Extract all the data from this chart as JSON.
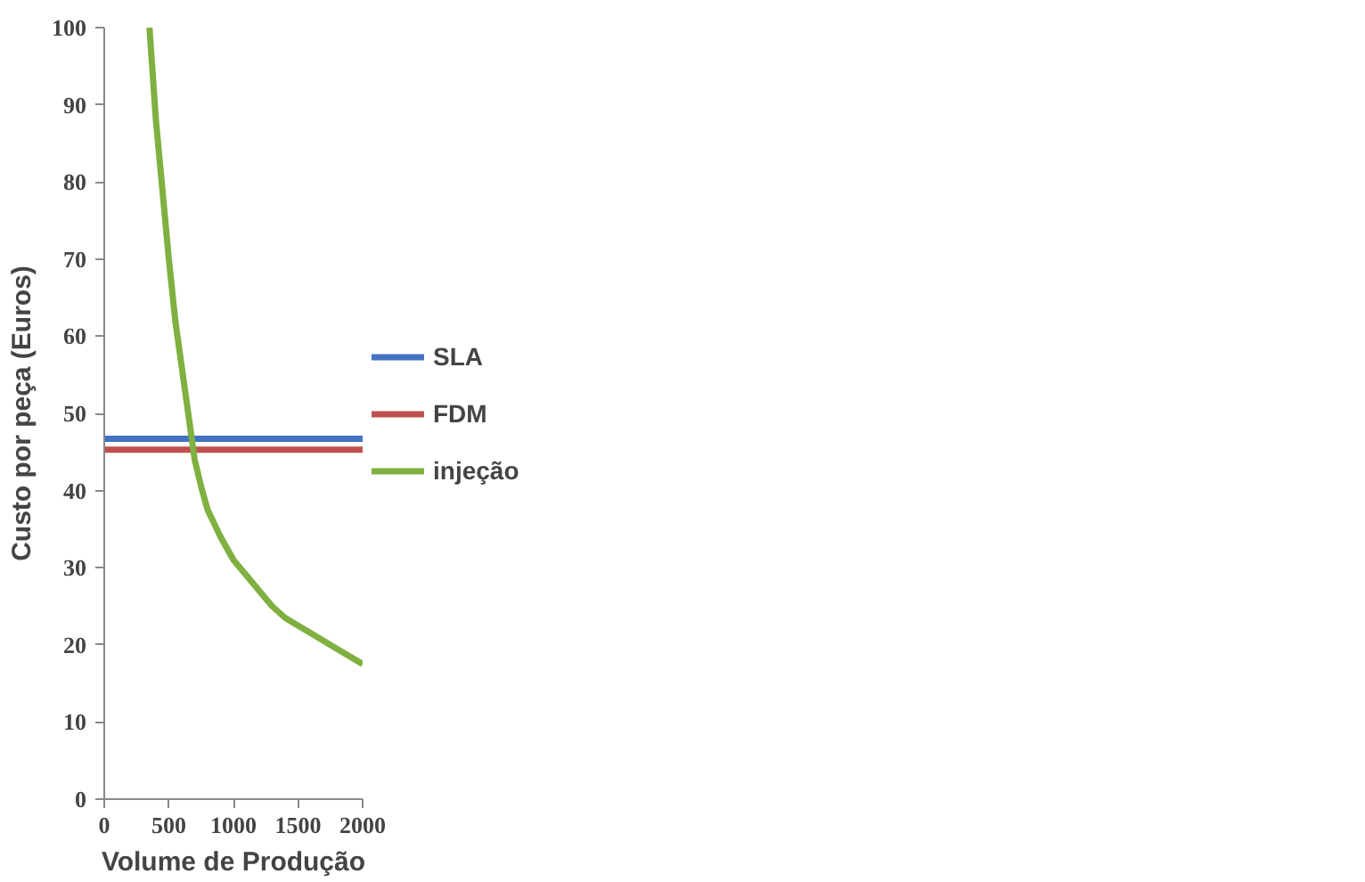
{
  "chart_data": {
    "type": "line",
    "xlabel": "Volume de Produção",
    "ylabel": "Custo por peça (Euros)",
    "xlim": [
      0,
      2000
    ],
    "ylim": [
      0,
      100
    ],
    "xticks": [
      0,
      500,
      1000,
      1500,
      2000
    ],
    "yticks": [
      0,
      10,
      20,
      30,
      40,
      50,
      60,
      70,
      80,
      90,
      100
    ],
    "grid": false,
    "legend": "right",
    "marker": "none",
    "line_style": "solid",
    "series": [
      {
        "name": "SLA",
        "color": "#4472c4",
        "x": [
          0,
          2000
        ],
        "values": [
          46.7,
          46.7
        ]
      },
      {
        "name": "FDM",
        "color": "#c0504d",
        "x": [
          0,
          2000
        ],
        "values": [
          45.3,
          45.3
        ]
      },
      {
        "name": "injeção",
        "color": "#7fb040",
        "x": [
          350,
          400,
          450,
          500,
          550,
          600,
          650,
          700,
          750,
          800,
          900,
          1000,
          1100,
          1200,
          1300,
          1400,
          1500,
          1600,
          1700,
          1800,
          1900,
          2000
        ],
        "values": [
          100,
          88,
          79,
          70,
          62,
          56,
          50,
          44,
          40.5,
          37.5,
          34,
          31,
          29,
          27,
          25,
          23.5,
          22.5,
          21.5,
          20.5,
          19.5,
          18.5,
          17.5
        ]
      }
    ]
  }
}
